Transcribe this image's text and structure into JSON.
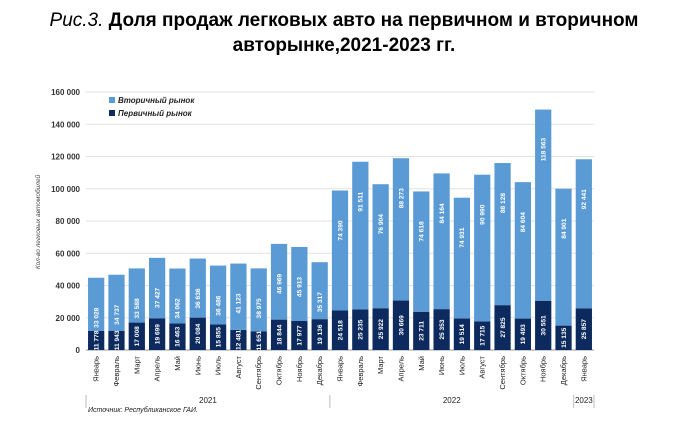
{
  "caption": {
    "figure": "Рис.3.",
    "title_line1": "Доля продаж легковых авто на первичном и вторичном",
    "title_line2": "авторынке,2021-2023 гг."
  },
  "chart_data": {
    "type": "bar",
    "stacked": true,
    "title": "Доля продаж легковых авто на первичном и вторичном авторынке,2021-2023 гг.",
    "ylabel": "Кол-во легковых автомобилей",
    "ylim": [
      0,
      160000
    ],
    "yticks": [
      "0",
      "20 000",
      "40 000",
      "60 000",
      "80 000",
      "100 000",
      "120 000",
      "140 000",
      "160 000"
    ],
    "grid": true,
    "legend_position": "top-left",
    "categories": [
      "Январь",
      "Февраль",
      "Март",
      "Апрель",
      "Май",
      "Июнь",
      "Июль",
      "Август",
      "Сентябрь",
      "Октябрь",
      "Ноябрь",
      "Декабрь",
      "Январь",
      "Февраль",
      "Март",
      "Апрель",
      "Май",
      "Июнь",
      "Июль",
      "Август",
      "Сентябрь",
      "Октябрь",
      "Ноябрь",
      "Декабрь",
      "Январь"
    ],
    "years": [
      {
        "label": "2021",
        "count": 12
      },
      {
        "label": "2022",
        "count": 12
      },
      {
        "label": "2023",
        "count": 1
      }
    ],
    "series": [
      {
        "name": "Первичный рынок",
        "color": "#0d2a5e",
        "values": [
          11778,
          11943,
          17008,
          19699,
          16463,
          20084,
          15855,
          12481,
          11651,
          18844,
          17977,
          19136,
          24518,
          25235,
          25922,
          30669,
          23711,
          25353,
          19514,
          17715,
          27825,
          19493,
          30551,
          15135,
          25857
        ],
        "labels": [
          "11 778",
          "11 943",
          "17 008",
          "19 699",
          "16 463",
          "20 084",
          "15 855",
          "12 481",
          "11 651",
          "18 844",
          "17 977",
          "19 136",
          "24 518",
          "25 235",
          "25 922",
          "30 669",
          "23 711",
          "25 353",
          "19 514",
          "17 715",
          "27 825",
          "19 493",
          "30 551",
          "15 135",
          "25 857"
        ]
      },
      {
        "name": "Вторичный рынок",
        "color": "#5b9bd5",
        "values": [
          33028,
          34737,
          33588,
          37427,
          34062,
          36636,
          36486,
          41123,
          38975,
          46969,
          45913,
          35317,
          74390,
          91511,
          76904,
          88273,
          74618,
          84164,
          74931,
          90990,
          88128,
          84604,
          118563,
          84901,
          92441
        ],
        "labels": [
          "33 028",
          "34 737",
          "33 588",
          "37 427",
          "34 062",
          "36 636",
          "36 486",
          "41 123",
          "38 975",
          "46 969",
          "45 913",
          "35 317",
          "74 390",
          "91 511",
          "76 904",
          "88 273",
          "74 618",
          "84 164",
          "74 931",
          "90 990",
          "88 128",
          "84 604",
          "118 563",
          "84 901",
          "92 441"
        ]
      }
    ],
    "source": "Источник: Республиканское ГАИ."
  }
}
